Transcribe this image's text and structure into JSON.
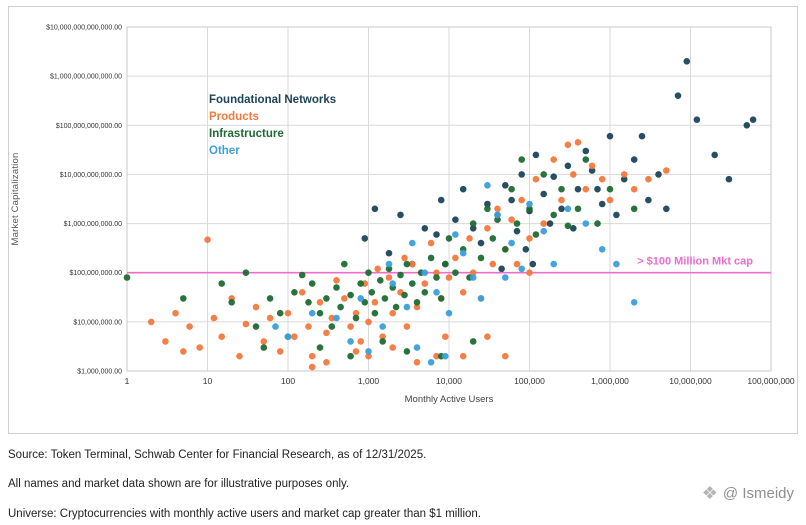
{
  "captions": {
    "source": "Source: Token Terminal, Schwab Center for Financial Research, as of 12/31/2025.",
    "disclaimer": "All names and market data shown are for illustrative purposes only.",
    "universe": "Universe: Cryptocurrencies with monthly active users and market cap greater than $1 million."
  },
  "watermark": {
    "icon": "diamond-logo-icon",
    "text": "@ Ismeidy"
  },
  "chart_data": {
    "type": "scatter",
    "title": "",
    "xlabel": "Monthly Active Users",
    "ylabel": "Market Capitalization",
    "x_scale": "log",
    "y_scale": "log",
    "xlim": [
      1,
      100000000
    ],
    "ylim": [
      1000000,
      10000000000000
    ],
    "grid": true,
    "legend_position": "upper-left-inside",
    "x_ticks": [
      {
        "value": 1,
        "label": "1"
      },
      {
        "value": 10,
        "label": "10"
      },
      {
        "value": 100,
        "label": "100"
      },
      {
        "value": 1000,
        "label": "1,000"
      },
      {
        "value": 10000,
        "label": "10,000"
      },
      {
        "value": 100000,
        "label": "100,000"
      },
      {
        "value": 1000000,
        "label": "1,000,000"
      },
      {
        "value": 10000000,
        "label": "10,000,000"
      },
      {
        "value": 100000000,
        "label": "100,000,000"
      }
    ],
    "y_ticks": [
      {
        "value": 1000000,
        "label": "$1,000,000.00"
      },
      {
        "value": 10000000,
        "label": "$10,000,000.00"
      },
      {
        "value": 100000000,
        "label": "$100,000,000.00"
      },
      {
        "value": 1000000000,
        "label": "$1,000,000,000.00"
      },
      {
        "value": 10000000000,
        "label": "$10,000,000,000.00"
      },
      {
        "value": 100000000000,
        "label": "$100,000,000,000.00"
      },
      {
        "value": 1000000000000,
        "label": "$1,000,000,000,000.00"
      },
      {
        "value": 10000000000000,
        "label": "$10,000,000,000,000.00"
      }
    ],
    "reference_line": {
      "value": 100000000,
      "label": "> $100 Million Mkt cap",
      "color": "#ee6ccf"
    },
    "series": [
      {
        "name": "Foundational Networks",
        "color": "#1c4458",
        "points": [
          [
            900,
            500000000.0
          ],
          [
            1200,
            2000000000.0
          ],
          [
            1800,
            250000000.0
          ],
          [
            2500,
            1500000000.0
          ],
          [
            3500,
            150000000.0
          ],
          [
            5000,
            800000000.0
          ],
          [
            7000,
            600000000.0
          ],
          [
            8000,
            3000000000.0
          ],
          [
            9000,
            150000000.0
          ],
          [
            12000,
            1200000000.0
          ],
          [
            15000,
            5000000000.0
          ],
          [
            20000,
            800000000.0
          ],
          [
            25000,
            400000000.0
          ],
          [
            30000,
            2500000000.0
          ],
          [
            40000,
            1500000000.0
          ],
          [
            45000,
            120000000.0
          ],
          [
            50000,
            6000000000.0
          ],
          [
            60000,
            3000000000.0
          ],
          [
            70000,
            700000000.0
          ],
          [
            80000,
            10000000000.0
          ],
          [
            90000,
            300000000.0
          ],
          [
            100000,
            1800000000.0
          ],
          [
            110000,
            150000000.0
          ],
          [
            120000,
            25000000000.0
          ],
          [
            150000,
            4000000000.0
          ],
          [
            180000,
            1000000000.0
          ],
          [
            200000,
            9000000000.0
          ],
          [
            250000,
            2000000000.0
          ],
          [
            300000,
            15000000000.0
          ],
          [
            350000,
            800000000.0
          ],
          [
            400000,
            5000000000.0
          ],
          [
            500000,
            30000000000.0
          ],
          [
            600000,
            12000000000.0
          ],
          [
            700000,
            5000000000.0
          ],
          [
            800000,
            2500000000.0
          ],
          [
            1000000.0,
            60000000000.0
          ],
          [
            1200000.0,
            1500000000.0
          ],
          [
            1500000.0,
            8000000000.0
          ],
          [
            2000000.0,
            20000000000.0
          ],
          [
            2500000.0,
            60000000000.0
          ],
          [
            3000000.0,
            3000000000.0
          ],
          [
            4000000.0,
            10000000000.0
          ],
          [
            5000000.0,
            2000000000.0
          ],
          [
            7000000.0,
            400000000000.0
          ],
          [
            9000000.0,
            2000000000000.0
          ],
          [
            12000000.0,
            130000000000.0
          ],
          [
            20000000.0,
            25000000000.0
          ],
          [
            30000000.0,
            8000000000.0
          ],
          [
            50000000.0,
            100000000000.0
          ],
          [
            60000000.0,
            130000000000.0
          ]
        ]
      },
      {
        "name": "Products",
        "color": "#f4793d",
        "points": [
          [
            2,
            10000000.0
          ],
          [
            3,
            4000000.0
          ],
          [
            4,
            15000000.0
          ],
          [
            5,
            2500000.0
          ],
          [
            6,
            8000000.0
          ],
          [
            8,
            3000000.0
          ],
          [
            10,
            470000000.0
          ],
          [
            12,
            12000000.0
          ],
          [
            15,
            5000000.0
          ],
          [
            20,
            30000000.0
          ],
          [
            25,
            2000000.0
          ],
          [
            30,
            9000000.0
          ],
          [
            40,
            20000000.0
          ],
          [
            50,
            4000000.0
          ],
          [
            60,
            12000000.0
          ],
          [
            80,
            2500000.0
          ],
          [
            100,
            15000000.0
          ],
          [
            120,
            5000000.0
          ],
          [
            150,
            40000000.0
          ],
          [
            180,
            8000000.0
          ],
          [
            200,
            2000000.0
          ],
          [
            200,
            1200000.0
          ],
          [
            250,
            25000000.0
          ],
          [
            300,
            6000000.0
          ],
          [
            300,
            1500000.0
          ],
          [
            350,
            12000000.0
          ],
          [
            400,
            70000000.0
          ],
          [
            500,
            30000000.0
          ],
          [
            600,
            8000000.0
          ],
          [
            700,
            15000000.0
          ],
          [
            700,
            2500000.0
          ],
          [
            800,
            4000000.0
          ],
          [
            900,
            60000000.0
          ],
          [
            1000,
            10000000.0
          ],
          [
            1000,
            2000000.0
          ],
          [
            1200,
            25000000.0
          ],
          [
            1300,
            120000000.0
          ],
          [
            1500,
            5000000.0
          ],
          [
            1800,
            80000000.0
          ],
          [
            2000,
            15000000.0
          ],
          [
            2000,
            3000000.0
          ],
          [
            2500,
            40000000.0
          ],
          [
            2800,
            200000000.0
          ],
          [
            3000,
            8000000.0
          ],
          [
            3500,
            150000000.0
          ],
          [
            4000,
            20000000.0
          ],
          [
            4000,
            1500000.0
          ],
          [
            5000,
            60000000.0
          ],
          [
            6000,
            400000000.0
          ],
          [
            7000,
            100000000.0
          ],
          [
            7000,
            2000000.0
          ],
          [
            8000,
            30000000.0
          ],
          [
            9000,
            5000000.0
          ],
          [
            10000,
            80000000.0
          ],
          [
            12000,
            200000000.0
          ],
          [
            15000,
            40000000.0
          ],
          [
            15000,
            2000000.0
          ],
          [
            18000,
            500000000.0
          ],
          [
            20000,
            100000000.0
          ],
          [
            25000,
            30000000.0
          ],
          [
            30000,
            800000000.0
          ],
          [
            30000,
            5000000.0
          ],
          [
            35000,
            150000000.0
          ],
          [
            40000,
            2000000000.0
          ],
          [
            50000,
            300000000.0
          ],
          [
            50000,
            2000000.0
          ],
          [
            60000,
            1200000000.0
          ],
          [
            70000,
            150000000.0
          ],
          [
            80000,
            3000000000.0
          ],
          [
            100000,
            500000000.0
          ],
          [
            100000,
            100000000.0
          ],
          [
            120000,
            8000000000.0
          ],
          [
            150000,
            1000000000.0
          ],
          [
            200000,
            20000000000.0
          ],
          [
            250000,
            3000000000.0
          ],
          [
            300000,
            40000000000.0
          ],
          [
            350000,
            10000000000.0
          ],
          [
            400000,
            45000000000.0
          ],
          [
            500000,
            5000000000.0
          ],
          [
            600000,
            15000000000.0
          ],
          [
            800000,
            8000000000.0
          ],
          [
            1000000.0,
            3000000000.0
          ],
          [
            1500000.0,
            10000000000.0
          ],
          [
            2000000.0,
            5000000000.0
          ],
          [
            3000000.0,
            8000000000.0
          ],
          [
            5000000.0,
            12000000000.0
          ]
        ]
      },
      {
        "name": "Infrastructure",
        "color": "#1e6b33",
        "points": [
          [
            1,
            80000000.0
          ],
          [
            5,
            30000000.0
          ],
          [
            15,
            60000000.0
          ],
          [
            20,
            25000000.0
          ],
          [
            30,
            100000000.0
          ],
          [
            40,
            8000000.0
          ],
          [
            50,
            3000000.0
          ],
          [
            60,
            30000000.0
          ],
          [
            80,
            15000000.0
          ],
          [
            100,
            5000000.0
          ],
          [
            120,
            40000000.0
          ],
          [
            150,
            90000000.0
          ],
          [
            180,
            25000000.0
          ],
          [
            200,
            60000000.0
          ],
          [
            250,
            15000000.0
          ],
          [
            250,
            3000000.0
          ],
          [
            300,
            30000000.0
          ],
          [
            350,
            8000000.0
          ],
          [
            400,
            50000000.0
          ],
          [
            450,
            20000000.0
          ],
          [
            500,
            150000000.0
          ],
          [
            600,
            35000000.0
          ],
          [
            600,
            2000000.0
          ],
          [
            700,
            12000000.0
          ],
          [
            800,
            60000000.0
          ],
          [
            900,
            25000000.0
          ],
          [
            1000,
            100000000.0
          ],
          [
            1100,
            40000000.0
          ],
          [
            1200,
            15000000.0
          ],
          [
            1400,
            70000000.0
          ],
          [
            1500,
            4000000.0
          ],
          [
            1600,
            30000000.0
          ],
          [
            1800,
            120000000.0
          ],
          [
            2000,
            50000000.0
          ],
          [
            2200,
            20000000.0
          ],
          [
            2500,
            90000000.0
          ],
          [
            2800,
            35000000.0
          ],
          [
            3000,
            150000000.0
          ],
          [
            3000,
            2500000.0
          ],
          [
            3500,
            60000000.0
          ],
          [
            4000,
            25000000.0
          ],
          [
            4500,
            100000000.0
          ],
          [
            5000,
            40000000.0
          ],
          [
            6000,
            200000000.0
          ],
          [
            7000,
            80000000.0
          ],
          [
            8000,
            30000000.0
          ],
          [
            8000,
            2000000.0
          ],
          [
            9000,
            150000000.0
          ],
          [
            10000,
            500000000.0
          ],
          [
            12000,
            100000000.0
          ],
          [
            15000,
            300000000.0
          ],
          [
            18000,
            80000000.0
          ],
          [
            20000,
            1000000000.0
          ],
          [
            20000,
            4000000.0
          ],
          [
            25000,
            200000000.0
          ],
          [
            30000,
            2000000000.0
          ],
          [
            35000,
            500000000.0
          ],
          [
            40000,
            1200000000.0
          ],
          [
            50000,
            300000000.0
          ],
          [
            60000,
            5000000000.0
          ],
          [
            70000,
            1000000000.0
          ],
          [
            80000,
            20000000000.0
          ],
          [
            100000,
            2000000000.0
          ],
          [
            120000,
            600000000.0
          ],
          [
            150000,
            10000000000.0
          ],
          [
            200000,
            1500000000.0
          ],
          [
            250000,
            5000000000.0
          ],
          [
            300000,
            900000000.0
          ],
          [
            400000,
            2000000000.0
          ],
          [
            500000,
            20000000000.0
          ],
          [
            700000,
            1000000000.0
          ],
          [
            1000000.0,
            5000000000.0
          ],
          [
            2000000.0,
            2000000000.0
          ]
        ]
      },
      {
        "name": "Other",
        "color": "#3aa0dc",
        "points": [
          [
            70,
            8000000.0
          ],
          [
            100,
            5000000.0
          ],
          [
            200,
            15000000.0
          ],
          [
            400,
            12000000.0
          ],
          [
            600,
            4000000.0
          ],
          [
            800,
            30000000.0
          ],
          [
            1000,
            2500000.0
          ],
          [
            1500,
            8000000.0
          ],
          [
            1800,
            150000000.0
          ],
          [
            2000,
            60000000.0
          ],
          [
            3000,
            20000000.0
          ],
          [
            3500,
            400000000.0
          ],
          [
            4000,
            3000000.0
          ],
          [
            5000,
            100000000.0
          ],
          [
            6000,
            1500000.0
          ],
          [
            7000,
            40000000.0
          ],
          [
            9000,
            2000000.0
          ],
          [
            10000,
            15000000.0
          ],
          [
            12000,
            600000000.0
          ],
          [
            15000,
            250000000.0
          ],
          [
            20000,
            80000000.0
          ],
          [
            25000,
            30000000.0
          ],
          [
            30000,
            6000000000.0
          ],
          [
            40000,
            1500000000.0
          ],
          [
            50000,
            80000000.0
          ],
          [
            60000,
            400000000.0
          ],
          [
            80000,
            120000000.0
          ],
          [
            100000,
            2500000000.0
          ],
          [
            150000,
            700000000.0
          ],
          [
            200000,
            150000000.0
          ],
          [
            300000,
            2000000000.0
          ],
          [
            500000,
            1000000000.0
          ],
          [
            800000,
            300000000.0
          ],
          [
            1200000.0,
            150000000.0
          ],
          [
            2000000.0,
            25000000.0
          ]
        ]
      }
    ]
  }
}
